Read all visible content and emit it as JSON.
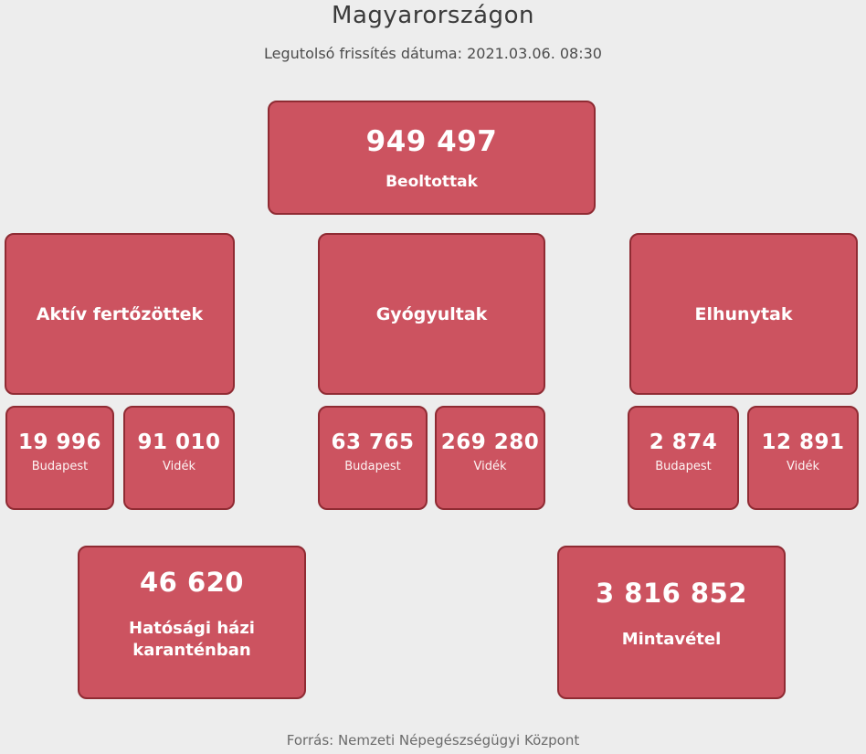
{
  "header": {
    "title": "Magyarországon",
    "last_updated": "Legutolsó frissítés dátuma: 2021.03.06. 08:30"
  },
  "colors": {
    "background": "#ededed",
    "card_fill": "#cc5360",
    "card_border": "#8f2b33",
    "card_text": "#ffffff",
    "title_text": "#3b3b3b",
    "source_text": "#6b6b6b"
  },
  "cards": {
    "vaccinated": {
      "value": "949 497",
      "label": "Beoltottak"
    },
    "groups": [
      {
        "id": "active-infected",
        "label": "Aktív fertőzöttek",
        "budapest": {
          "value": "19 996",
          "label": "Budapest"
        },
        "videk": {
          "value": "91 010",
          "label": "Vidék"
        }
      },
      {
        "id": "recovered",
        "label": "Gyógyultak",
        "budapest": {
          "value": "63 765",
          "label": "Budapest"
        },
        "videk": {
          "value": "269 280",
          "label": "Vidék"
        }
      },
      {
        "id": "deceased",
        "label": "Elhunytak",
        "budapest": {
          "value": "2 874",
          "label": "Budapest"
        },
        "videk": {
          "value": "12 891",
          "label": "Vidék"
        }
      }
    ],
    "quarantine": {
      "value": "46 620",
      "label": "Hatósági házi karanténban"
    },
    "samples": {
      "value": "3 816 852",
      "label": "Mintavétel"
    }
  },
  "footer": {
    "source": "Forrás: Nemzeti Népegészségügyi Központ"
  }
}
